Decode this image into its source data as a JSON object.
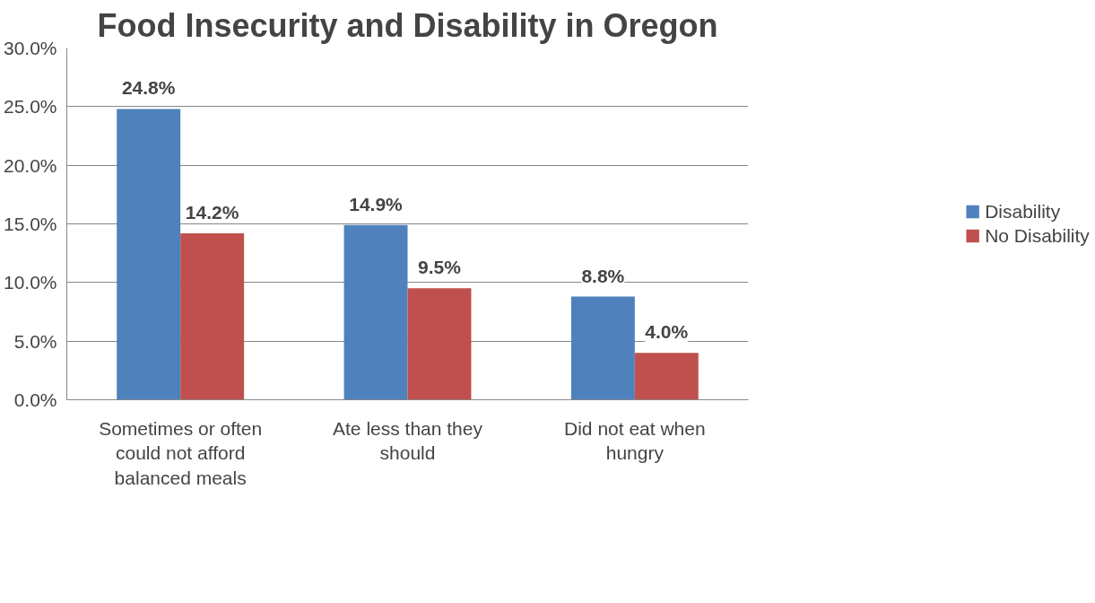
{
  "chart_data": {
    "type": "bar",
    "title": "Food Insecurity and Disability in Oregon",
    "categories": [
      "Sometimes or often could not afford balanced meals",
      "Ate less than they should",
      "Did not eat when hungry"
    ],
    "series": [
      {
        "name": "Disability",
        "color": "#4f81bd",
        "values": [
          24.8,
          14.9,
          8.8
        ],
        "value_labels": [
          "24.8%",
          "14.9%",
          "8.8%"
        ]
      },
      {
        "name": "No Disability",
        "color": "#c0504d",
        "values": [
          14.2,
          9.5,
          4.0
        ],
        "value_labels": [
          "14.2%",
          "9.5%",
          "4.0%"
        ]
      }
    ],
    "ylim": [
      0,
      30
    ],
    "yticks": [
      {
        "value": 0,
        "label": "0.0%"
      },
      {
        "value": 5,
        "label": "5.0%"
      },
      {
        "value": 10,
        "label": "10.0%"
      },
      {
        "value": 15,
        "label": "15.0%"
      },
      {
        "value": 20,
        "label": "20.0%"
      },
      {
        "value": 25,
        "label": "25.0%"
      },
      {
        "value": 30,
        "label": "30.0%"
      }
    ],
    "grid": "y",
    "legend": "right"
  }
}
